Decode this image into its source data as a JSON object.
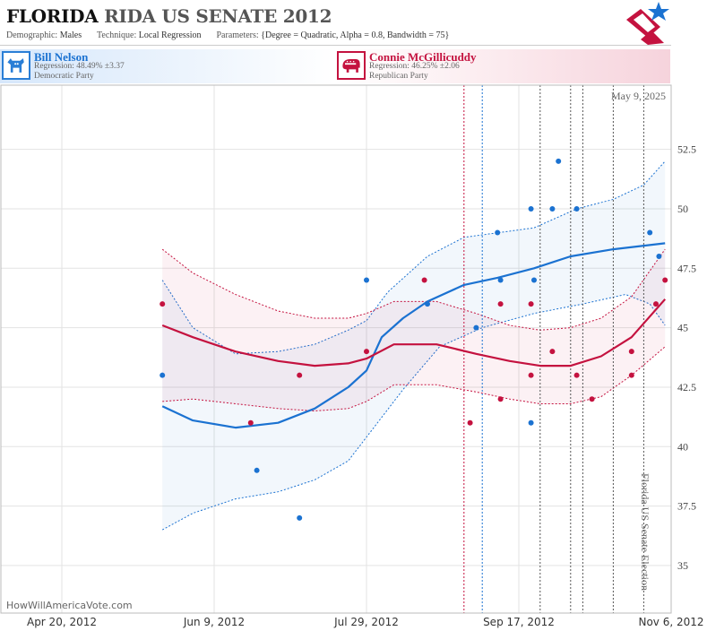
{
  "header": {
    "title_part1": "FLORIDA",
    "title_part2": "RIDA US SENATE 2012",
    "demographic_label": "Demographic:",
    "demographic_value": "Males",
    "technique_label": "Technique:",
    "technique_value": "Local Regression",
    "parameters_label": "Parameters:",
    "parameters_value": "{Degree = Quadratic, Alpha = 0.8, Bandwidth = 75}"
  },
  "candidates": {
    "dem": {
      "name": "Bill Nelson",
      "regression": "Regression: 48.49% ±3.37",
      "party": "Democratic Party",
      "color": "#1b72d1"
    },
    "rep": {
      "name": "Connie McGillicuddy",
      "regression": "Regression: 46.25% ±2.06",
      "party": "Republican Party",
      "color": "#c4123f"
    }
  },
  "chart_data": {
    "type": "scatter",
    "title": "",
    "xlabel": "",
    "ylabel": "",
    "date_label": "May 9, 2025",
    "event_label": "Florida US Senate Election",
    "watermark": "HowWillAmericaVote.com",
    "x_tick_labels": [
      "Apr 20, 2012",
      "Jun 9, 2012",
      "Jul 29, 2012",
      "Sep 17, 2012",
      "Nov 6, 2012"
    ],
    "x_tick_dates": [
      "2012-04-20",
      "2012-06-09",
      "2012-07-29",
      "2012-09-17",
      "2012-11-06"
    ],
    "xlim": [
      "2012-03-31",
      "2012-11-06"
    ],
    "y_ticks": [
      35,
      37.5,
      40,
      42.5,
      45,
      47.5,
      50,
      52.5
    ],
    "y_tick_labels": [
      "35",
      "37.5",
      "40",
      "42.5",
      "45",
      "47.5",
      "50",
      "52.5"
    ],
    "ylim": [
      33,
      55.2
    ],
    "grid": true,
    "y_axis_side": "right",
    "vlines": [
      {
        "date": "2012-08-30",
        "color": "#c4123f"
      },
      {
        "date": "2012-09-05",
        "color": "#1b72d1"
      },
      {
        "date": "2012-09-24",
        "color": "#555555"
      },
      {
        "date": "2012-10-04",
        "color": "#555555"
      },
      {
        "date": "2012-10-08",
        "color": "#555555"
      },
      {
        "date": "2012-10-18",
        "color": "#555555"
      },
      {
        "date": "2012-10-28",
        "color": "#555555"
      },
      {
        "date": "2012-11-06",
        "color": "#555555"
      }
    ],
    "series": [
      {
        "name": "Bill Nelson",
        "color": "#1b72d1",
        "points": [
          {
            "x": "2012-05-23",
            "y": 43
          },
          {
            "x": "2012-06-23",
            "y": 39
          },
          {
            "x": "2012-07-07",
            "y": 37
          },
          {
            "x": "2012-07-29",
            "y": 47
          },
          {
            "x": "2012-08-18",
            "y": 46
          },
          {
            "x": "2012-09-03",
            "y": 45
          },
          {
            "x": "2012-09-10",
            "y": 49
          },
          {
            "x": "2012-09-11",
            "y": 47
          },
          {
            "x": "2012-09-21",
            "y": 50
          },
          {
            "x": "2012-09-21",
            "y": 41
          },
          {
            "x": "2012-09-22",
            "y": 47
          },
          {
            "x": "2012-09-28",
            "y": 50
          },
          {
            "x": "2012-09-30",
            "y": 52
          },
          {
            "x": "2012-10-06",
            "y": 50
          },
          {
            "x": "2012-10-30",
            "y": 49
          },
          {
            "x": "2012-11-02",
            "y": 48
          }
        ],
        "fit": [
          {
            "x": "2012-05-23",
            "y": 41.7
          },
          {
            "x": "2012-06-02",
            "y": 41.1
          },
          {
            "x": "2012-06-16",
            "y": 40.8
          },
          {
            "x": "2012-06-30",
            "y": 41.0
          },
          {
            "x": "2012-07-12",
            "y": 41.6
          },
          {
            "x": "2012-07-23",
            "y": 42.5
          },
          {
            "x": "2012-07-29",
            "y": 43.2
          },
          {
            "x": "2012-08-03",
            "y": 44.6
          },
          {
            "x": "2012-08-10",
            "y": 45.4
          },
          {
            "x": "2012-08-18",
            "y": 46.1
          },
          {
            "x": "2012-08-30",
            "y": 46.8
          },
          {
            "x": "2012-09-10",
            "y": 47.1
          },
          {
            "x": "2012-09-22",
            "y": 47.5
          },
          {
            "x": "2012-10-04",
            "y": 48.0
          },
          {
            "x": "2012-10-18",
            "y": 48.3
          },
          {
            "x": "2012-11-04",
            "y": 48.55
          }
        ],
        "band_upper": [
          {
            "x": "2012-05-23",
            "y": 47.0
          },
          {
            "x": "2012-06-02",
            "y": 45.0
          },
          {
            "x": "2012-06-16",
            "y": 43.9
          },
          {
            "x": "2012-06-30",
            "y": 44.0
          },
          {
            "x": "2012-07-12",
            "y": 44.3
          },
          {
            "x": "2012-07-23",
            "y": 44.9
          },
          {
            "x": "2012-07-29",
            "y": 45.3
          },
          {
            "x": "2012-08-05",
            "y": 46.5
          },
          {
            "x": "2012-08-18",
            "y": 48.0
          },
          {
            "x": "2012-08-30",
            "y": 48.8
          },
          {
            "x": "2012-09-22",
            "y": 49.2
          },
          {
            "x": "2012-10-06",
            "y": 50.0
          },
          {
            "x": "2012-10-18",
            "y": 50.4
          },
          {
            "x": "2012-10-28",
            "y": 51.0
          },
          {
            "x": "2012-11-04",
            "y": 52.0
          }
        ],
        "band_lower": [
          {
            "x": "2012-05-23",
            "y": 36.5
          },
          {
            "x": "2012-06-02",
            "y": 37.2
          },
          {
            "x": "2012-06-16",
            "y": 37.8
          },
          {
            "x": "2012-06-30",
            "y": 38.1
          },
          {
            "x": "2012-07-12",
            "y": 38.6
          },
          {
            "x": "2012-07-23",
            "y": 39.4
          },
          {
            "x": "2012-07-29",
            "y": 40.4
          },
          {
            "x": "2012-08-10",
            "y": 42.4
          },
          {
            "x": "2012-08-22",
            "y": 44.2
          },
          {
            "x": "2012-09-05",
            "y": 45.0
          },
          {
            "x": "2012-09-22",
            "y": 45.6
          },
          {
            "x": "2012-10-08",
            "y": 46.0
          },
          {
            "x": "2012-10-22",
            "y": 46.4
          },
          {
            "x": "2012-10-30",
            "y": 46.0
          },
          {
            "x": "2012-11-04",
            "y": 45.1
          }
        ]
      },
      {
        "name": "Connie McGillicuddy",
        "color": "#c4123f",
        "points": [
          {
            "x": "2012-05-23",
            "y": 46
          },
          {
            "x": "2012-06-21",
            "y": 41
          },
          {
            "x": "2012-07-07",
            "y": 43
          },
          {
            "x": "2012-07-29",
            "y": 44
          },
          {
            "x": "2012-08-17",
            "y": 47
          },
          {
            "x": "2012-09-01",
            "y": 41
          },
          {
            "x": "2012-09-11",
            "y": 46
          },
          {
            "x": "2012-09-11",
            "y": 42
          },
          {
            "x": "2012-09-21",
            "y": 46
          },
          {
            "x": "2012-09-21",
            "y": 43
          },
          {
            "x": "2012-09-28",
            "y": 44
          },
          {
            "x": "2012-10-06",
            "y": 43
          },
          {
            "x": "2012-10-11",
            "y": 42
          },
          {
            "x": "2012-10-24",
            "y": 44
          },
          {
            "x": "2012-10-24",
            "y": 43
          },
          {
            "x": "2012-11-01",
            "y": 46
          },
          {
            "x": "2012-11-04",
            "y": 47
          }
        ],
        "fit": [
          {
            "x": "2012-05-23",
            "y": 45.1
          },
          {
            "x": "2012-06-02",
            "y": 44.6
          },
          {
            "x": "2012-06-16",
            "y": 44.0
          },
          {
            "x": "2012-06-30",
            "y": 43.6
          },
          {
            "x": "2012-07-12",
            "y": 43.4
          },
          {
            "x": "2012-07-23",
            "y": 43.5
          },
          {
            "x": "2012-07-29",
            "y": 43.7
          },
          {
            "x": "2012-08-07",
            "y": 44.3
          },
          {
            "x": "2012-08-21",
            "y": 44.3
          },
          {
            "x": "2012-09-03",
            "y": 43.9
          },
          {
            "x": "2012-09-14",
            "y": 43.6
          },
          {
            "x": "2012-09-24",
            "y": 43.4
          },
          {
            "x": "2012-10-04",
            "y": 43.4
          },
          {
            "x": "2012-10-14",
            "y": 43.8
          },
          {
            "x": "2012-10-24",
            "y": 44.6
          },
          {
            "x": "2012-11-04",
            "y": 46.2
          }
        ],
        "band_upper": [
          {
            "x": "2012-05-23",
            "y": 48.3
          },
          {
            "x": "2012-06-02",
            "y": 47.3
          },
          {
            "x": "2012-06-16",
            "y": 46.4
          },
          {
            "x": "2012-06-30",
            "y": 45.7
          },
          {
            "x": "2012-07-12",
            "y": 45.4
          },
          {
            "x": "2012-07-23",
            "y": 45.4
          },
          {
            "x": "2012-07-29",
            "y": 45.6
          },
          {
            "x": "2012-08-07",
            "y": 46.1
          },
          {
            "x": "2012-08-21",
            "y": 46.1
          },
          {
            "x": "2012-09-03",
            "y": 45.6
          },
          {
            "x": "2012-09-14",
            "y": 45.1
          },
          {
            "x": "2012-09-24",
            "y": 44.9
          },
          {
            "x": "2012-10-04",
            "y": 45.0
          },
          {
            "x": "2012-10-14",
            "y": 45.4
          },
          {
            "x": "2012-10-24",
            "y": 46.3
          },
          {
            "x": "2012-11-04",
            "y": 48.3
          }
        ],
        "band_lower": [
          {
            "x": "2012-05-23",
            "y": 41.9
          },
          {
            "x": "2012-06-02",
            "y": 42.0
          },
          {
            "x": "2012-06-16",
            "y": 41.8
          },
          {
            "x": "2012-06-30",
            "y": 41.6
          },
          {
            "x": "2012-07-12",
            "y": 41.5
          },
          {
            "x": "2012-07-23",
            "y": 41.6
          },
          {
            "x": "2012-07-29",
            "y": 41.9
          },
          {
            "x": "2012-08-07",
            "y": 42.6
          },
          {
            "x": "2012-08-21",
            "y": 42.6
          },
          {
            "x": "2012-09-03",
            "y": 42.3
          },
          {
            "x": "2012-09-14",
            "y": 42.0
          },
          {
            "x": "2012-09-24",
            "y": 41.8
          },
          {
            "x": "2012-10-04",
            "y": 41.8
          },
          {
            "x": "2012-10-14",
            "y": 42.1
          },
          {
            "x": "2012-10-24",
            "y": 43.0
          },
          {
            "x": "2012-11-04",
            "y": 44.2
          }
        ]
      }
    ]
  }
}
